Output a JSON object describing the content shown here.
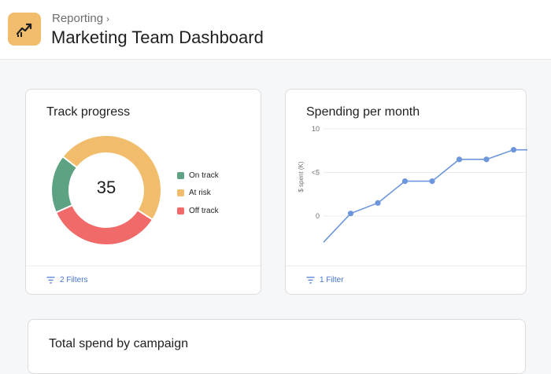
{
  "header": {
    "breadcrumb": "Reporting",
    "title": "Marketing Team Dashboard",
    "icon": "trending-up-icon",
    "icon_color": "#f1bd6c"
  },
  "cards": {
    "track_progress": {
      "title": "Track progress",
      "center_value": "35",
      "filters_label": "2 Filters",
      "chart_data": {
        "type": "pie",
        "categories": [
          "On track",
          "At risk",
          "Off track"
        ],
        "values": [
          6,
          17,
          12
        ],
        "colors": [
          "#5da283",
          "#f1bd6c",
          "#f06a6a"
        ],
        "donut": true,
        "legend": "right"
      }
    },
    "spending": {
      "title": "Spending per month",
      "filters_label": "1 Filter",
      "chart_data": {
        "type": "line",
        "ylabel": "$ spent (K)",
        "yticks": [
          "10",
          "<5",
          "0"
        ],
        "ytick_values": [
          10,
          5,
          0
        ],
        "ylim": [
          -3,
          10
        ],
        "x": [
          0,
          1,
          2,
          3,
          4,
          5,
          6,
          7
        ],
        "values": [
          -3,
          0.3,
          1.5,
          4,
          4,
          6.5,
          6.5,
          7.6
        ],
        "color": "#6e96dc",
        "grid": true
      }
    },
    "total_spend": {
      "title": "Total spend by campaign"
    }
  }
}
